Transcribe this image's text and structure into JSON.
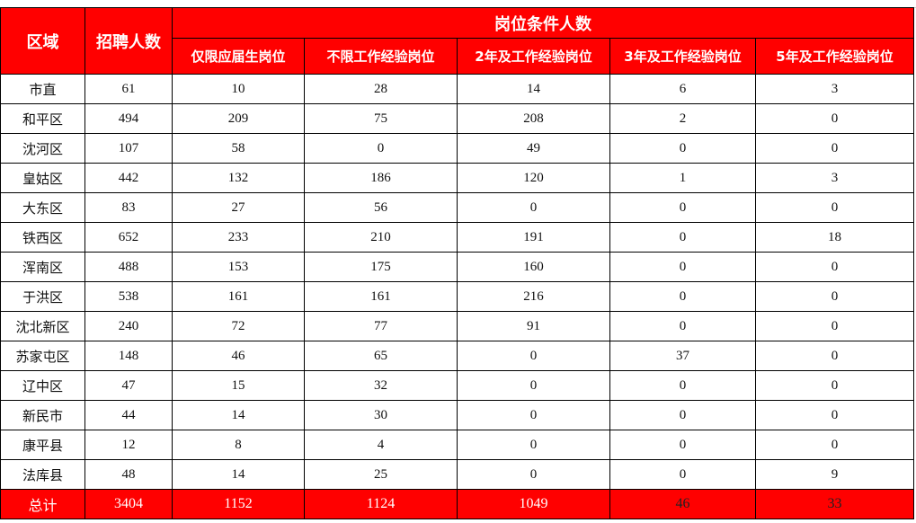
{
  "header": {
    "region": "区域",
    "hires": "招聘人数",
    "group": "岗位条件人数",
    "subs": [
      "仅限应届生岗位",
      "不限工作经验岗位",
      "2年及工作经验岗位",
      "3年及工作经验岗位",
      "5年及工作经验岗位"
    ]
  },
  "rows": [
    [
      "市直",
      "61",
      "10",
      "28",
      "14",
      "6",
      "3"
    ],
    [
      "和平区",
      "494",
      "209",
      "75",
      "208",
      "2",
      "0"
    ],
    [
      "沈河区",
      "107",
      "58",
      "0",
      "49",
      "0",
      "0"
    ],
    [
      "皇姑区",
      "442",
      "132",
      "186",
      "120",
      "1",
      "3"
    ],
    [
      "大东区",
      "83",
      "27",
      "56",
      "0",
      "0",
      "0"
    ],
    [
      "铁西区",
      "652",
      "233",
      "210",
      "191",
      "0",
      "18"
    ],
    [
      "浑南区",
      "488",
      "153",
      "175",
      "160",
      "0",
      "0"
    ],
    [
      "于洪区",
      "538",
      "161",
      "161",
      "216",
      "0",
      "0"
    ],
    [
      "沈北新区",
      "240",
      "72",
      "77",
      "91",
      "0",
      "0"
    ],
    [
      "苏家屯区",
      "148",
      "46",
      "65",
      "0",
      "37",
      "0"
    ],
    [
      "辽中区",
      "47",
      "15",
      "32",
      "0",
      "0",
      "0"
    ],
    [
      "新民市",
      "44",
      "14",
      "30",
      "0",
      "0",
      "0"
    ],
    [
      "康平县",
      "12",
      "8",
      "4",
      "0",
      "0",
      "0"
    ],
    [
      "法库县",
      "48",
      "14",
      "25",
      "0",
      "0",
      "9"
    ]
  ],
  "total": [
    "总计",
    "3404",
    "1152",
    "1124",
    "1049",
    "46",
    "33"
  ],
  "colors": {
    "header_bg": "#ff0000",
    "header_text": "#ffffff"
  }
}
